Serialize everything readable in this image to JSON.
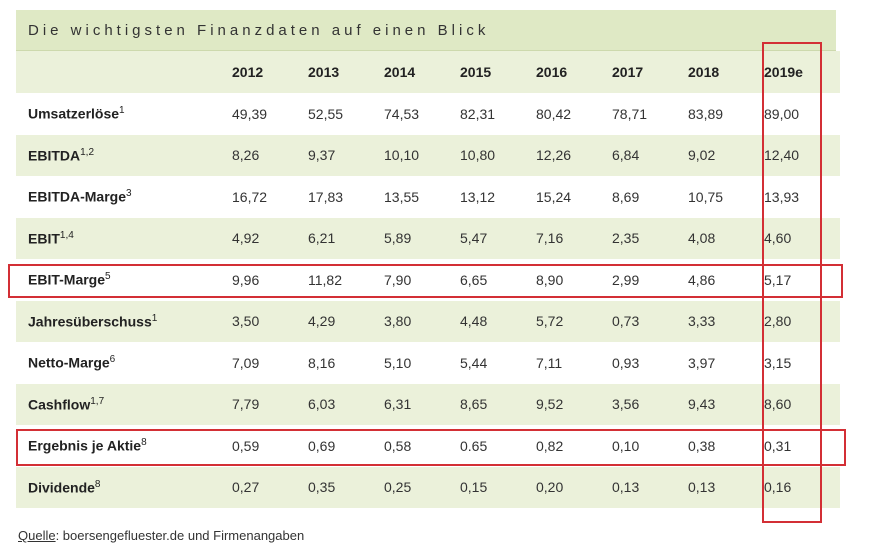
{
  "title": "Die wichtigsten Finanzdaten auf einen Blick",
  "years": [
    "2012",
    "2013",
    "2014",
    "2015",
    "2016",
    "2017",
    "2018",
    "2019e"
  ],
  "rows": [
    {
      "label": "Umsatzerlöse",
      "sup": "1",
      "values": [
        "49,39",
        "52,55",
        "74,53",
        "82,31",
        "80,42",
        "78,71",
        "83,89",
        "89,00"
      ]
    },
    {
      "label": "EBITDA",
      "sup": "1,2",
      "values": [
        "8,26",
        "9,37",
        "10,10",
        "10,80",
        "12,26",
        "6,84",
        "9,02",
        "12,40"
      ]
    },
    {
      "label": "EBITDA-Marge",
      "sup": "3",
      "values": [
        "16,72",
        "17,83",
        "13,55",
        "13,12",
        "15,24",
        "8,69",
        "10,75",
        "13,93"
      ]
    },
    {
      "label": "EBIT",
      "sup": "1,4",
      "values": [
        "4,92",
        "6,21",
        "5,89",
        "5,47",
        "7,16",
        "2,35",
        "4,08",
        "4,60"
      ]
    },
    {
      "label": "EBIT-Marge",
      "sup": "5",
      "values": [
        "9,96",
        "11,82",
        "7,90",
        "6,65",
        "8,90",
        "2,99",
        "4,86",
        "5,17"
      ]
    },
    {
      "label": "Jahresüberschuss",
      "sup": "1",
      "values": [
        "3,50",
        "4,29",
        "3,80",
        "4,48",
        "5,72",
        "0,73",
        "3,33",
        "2,80"
      ]
    },
    {
      "label": "Netto-Marge",
      "sup": "6",
      "values": [
        "7,09",
        "8,16",
        "5,10",
        "5,44",
        "7,11",
        "0,93",
        "3,97",
        "3,15"
      ]
    },
    {
      "label": "Cashflow",
      "sup": "1,7",
      "values": [
        "7,79",
        "6,03",
        "6,31",
        "8,65",
        "9,52",
        "3,56",
        "9,43",
        "8,60"
      ]
    },
    {
      "label": "Ergebnis je Aktie",
      "sup": "8",
      "values": [
        "0,59",
        "0,69",
        "0,58",
        "0.65",
        "0,82",
        "0,10",
        "0,38",
        "0,31"
      ]
    },
    {
      "label": "Dividende",
      "sup": "8",
      "values": [
        "0,27",
        "0,35",
        "0,25",
        "0,15",
        "0,20",
        "0,13",
        "0,13",
        "0,16"
      ]
    }
  ],
  "source": {
    "label": "Quelle",
    "text": ": boersengefluester.de und Firmenangaben"
  },
  "highlight_color": "#d32f35"
}
